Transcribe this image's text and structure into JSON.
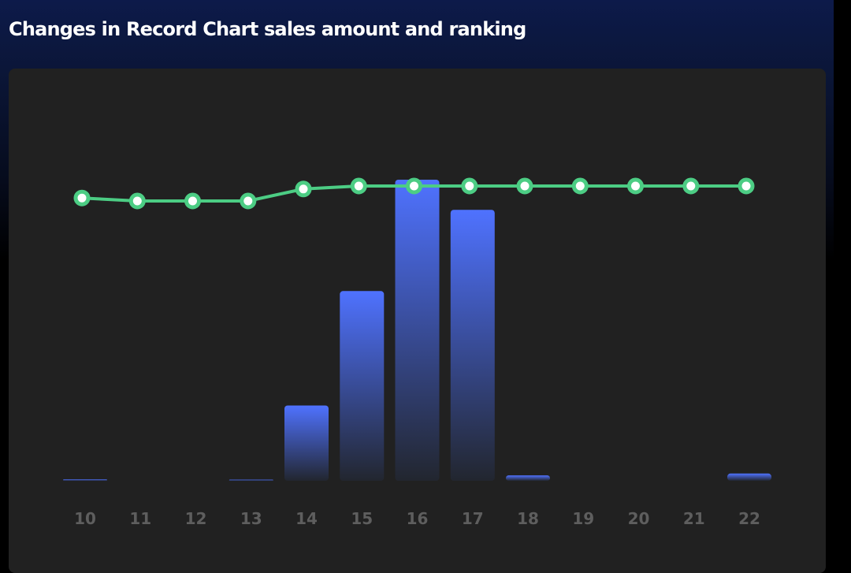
{
  "header": {
    "title": "Changes in Record Chart sales amount and ranking"
  },
  "colors": {
    "bar_top": "#4f72ff",
    "bar_bottom": "#22262f",
    "line": "#4ccd84",
    "point_fill": "#ffffff",
    "panel": "#212121",
    "tick_label": "#5e5e5e"
  },
  "chart_data": {
    "type": "bar",
    "categories": [
      "10",
      "11",
      "12",
      "13",
      "14",
      "15",
      "16",
      "17",
      "18",
      "19",
      "20",
      "21",
      "22"
    ],
    "series": [
      {
        "type": "bar",
        "values": [
          0.5,
          0,
          0,
          0.3,
          25,
          63,
          100,
          90,
          1.8,
          0,
          0,
          0,
          2.4
        ]
      },
      {
        "type": "line",
        "values": [
          4,
          5,
          5,
          5,
          1,
          0,
          0,
          0,
          0,
          0,
          0,
          0,
          0
        ]
      }
    ],
    "title": "Changes in Record Chart sales amount and ranking",
    "xlabel": "",
    "ylabel": "",
    "grid": false,
    "legend": false
  }
}
